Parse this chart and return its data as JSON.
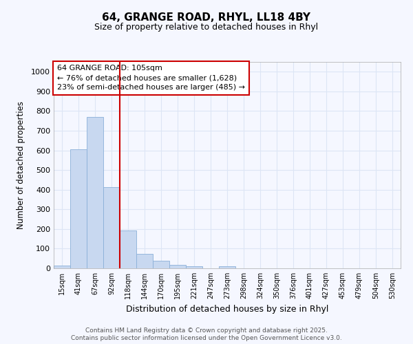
{
  "title1": "64, GRANGE ROAD, RHYL, LL18 4BY",
  "title2": "Size of property relative to detached houses in Rhyl",
  "xlabel": "Distribution of detached houses by size in Rhyl",
  "ylabel": "Number of detached properties",
  "categories": [
    "15sqm",
    "41sqm",
    "67sqm",
    "92sqm",
    "118sqm",
    "144sqm",
    "170sqm",
    "195sqm",
    "221sqm",
    "247sqm",
    "273sqm",
    "298sqm",
    "324sqm",
    "350sqm",
    "376sqm",
    "401sqm",
    "427sqm",
    "453sqm",
    "479sqm",
    "504sqm",
    "530sqm"
  ],
  "values": [
    15,
    607,
    770,
    412,
    193,
    75,
    40,
    17,
    12,
    0,
    10,
    0,
    0,
    0,
    0,
    0,
    0,
    0,
    0,
    0,
    0
  ],
  "bar_color": "#c8d8f0",
  "bar_edge_color": "#8ab0d8",
  "background_color": "#f5f7ff",
  "plot_bg_color": "#f5f7ff",
  "grid_color": "#dde5f5",
  "vline_x": 3.5,
  "vline_color": "#cc0000",
  "annotation_line1": "64 GRANGE ROAD: 105sqm",
  "annotation_line2": "← 76% of detached houses are smaller (1,628)",
  "annotation_line3": "23% of semi-detached houses are larger (485) →",
  "annotation_box_color": "#ffffff",
  "annotation_border_color": "#cc0000",
  "ylim": [
    0,
    1050
  ],
  "yticks": [
    0,
    100,
    200,
    300,
    400,
    500,
    600,
    700,
    800,
    900,
    1000
  ],
  "footer1": "Contains HM Land Registry data © Crown copyright and database right 2025.",
  "footer2": "Contains public sector information licensed under the Open Government Licence v3.0."
}
